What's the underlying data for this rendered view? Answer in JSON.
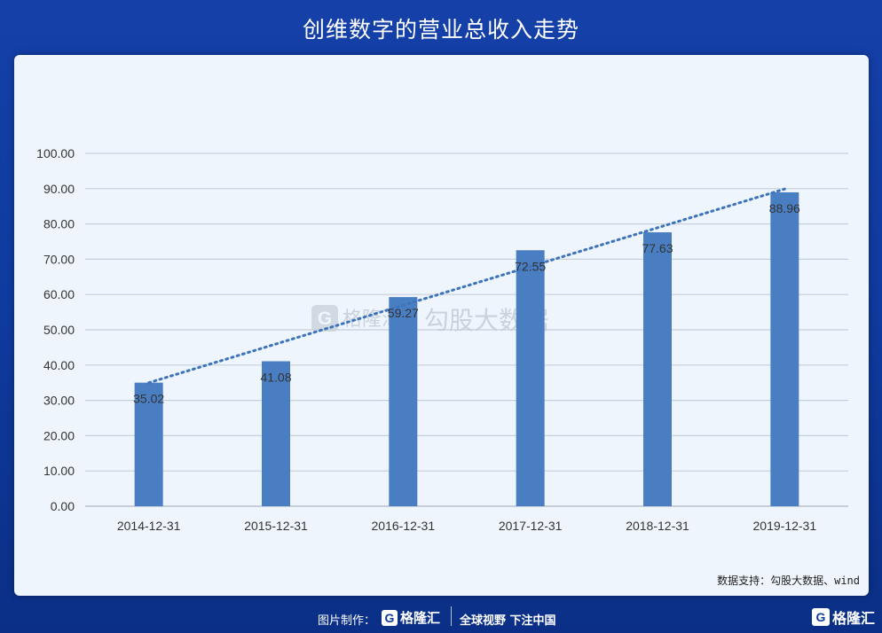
{
  "page": {
    "title": "创维数字的营业总收入走势"
  },
  "source_note": "数据支持：勾股大数据、wind",
  "footer": {
    "credit_label": "图片制作：",
    "logo_mark": "G",
    "logo_name": "格隆汇",
    "slogan": "全球视野 下注中国"
  },
  "watermark": {
    "logo_mark": "G",
    "brand": "格隆汇",
    "text": "勾股大数据"
  },
  "colors": {
    "bar": "#4a7ec2",
    "trend": "#3d74bb",
    "grid": "#c7cfdb",
    "axis": "#b0b8c4"
  },
  "chart_data": {
    "type": "bar",
    "categories": [
      "2014-12-31",
      "2015-12-31",
      "2016-12-31",
      "2017-12-31",
      "2018-12-31",
      "2019-12-31"
    ],
    "values": [
      35.02,
      41.08,
      59.27,
      72.55,
      77.63,
      88.96
    ],
    "data_labels": [
      "35.02",
      "41.08",
      "59.27",
      "72.55",
      "77.63",
      "88.96"
    ],
    "yticks": [
      "0.00",
      "10.00",
      "20.00",
      "30.00",
      "40.00",
      "50.00",
      "60.00",
      "70.00",
      "80.00",
      "90.00",
      "100.00"
    ],
    "ylim": [
      0,
      100
    ],
    "trendline": {
      "style": "dotted",
      "type": "linear",
      "start": 35.0,
      "end": 89.9
    },
    "grid": true,
    "legend": "none"
  }
}
